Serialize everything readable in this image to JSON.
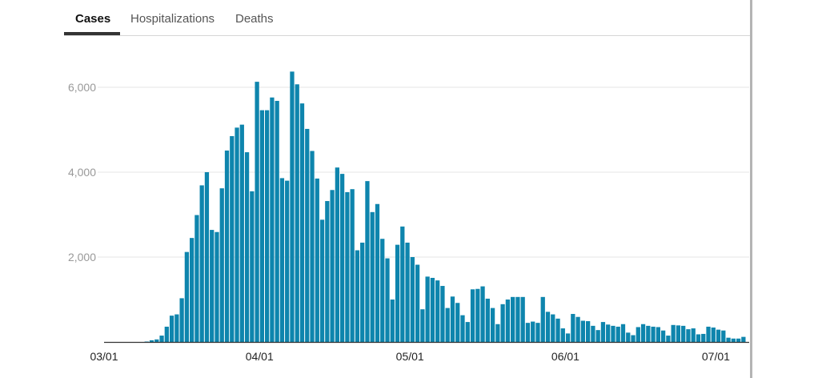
{
  "tabs": [
    {
      "label": "Cases",
      "active": true
    },
    {
      "label": "Hospitalizations",
      "active": false
    },
    {
      "label": "Deaths",
      "active": false
    }
  ],
  "colors": {
    "bar": "#0e85ad",
    "grid": "#e6e6e6",
    "axis": "#333333"
  },
  "chart_data": {
    "type": "bar",
    "title": "",
    "xlabel": "",
    "ylabel": "",
    "grid": true,
    "legend": "none",
    "ylim": [
      0,
      6500
    ],
    "yticks": [
      {
        "value": 2000,
        "label": "2,000"
      },
      {
        "value": 4000,
        "label": "4,000"
      },
      {
        "value": 6000,
        "label": "6,000"
      }
    ],
    "xticks": [
      {
        "index": 0,
        "label": "03/01"
      },
      {
        "index": 31,
        "label": "04/01"
      },
      {
        "index": 61,
        "label": "05/01"
      },
      {
        "index": 92,
        "label": "06/01"
      },
      {
        "index": 122,
        "label": "07/01"
      }
    ],
    "start_date": "03/01",
    "values": [
      0,
      0,
      0,
      0,
      0,
      0,
      0,
      0,
      10,
      40,
      60,
      150,
      360,
      620,
      650,
      1030,
      2120,
      2450,
      2990,
      3690,
      4000,
      2640,
      2590,
      3620,
      4510,
      4850,
      5050,
      5120,
      4470,
      3550,
      6130,
      5460,
      5460,
      5760,
      5680,
      3860,
      3800,
      6370,
      6070,
      5620,
      5020,
      4500,
      3850,
      2880,
      3320,
      3580,
      4110,
      3960,
      3530,
      3600,
      2160,
      2340,
      3790,
      3060,
      3250,
      2430,
      1970,
      1000,
      2290,
      2720,
      2340,
      2000,
      1820,
      770,
      1540,
      1510,
      1450,
      1320,
      800,
      1070,
      920,
      630,
      470,
      1240,
      1250,
      1310,
      1020,
      800,
      420,
      890,
      1000,
      1060,
      1060,
      1060,
      450,
      480,
      450,
      1060,
      710,
      650,
      550,
      320,
      200,
      660,
      590,
      500,
      490,
      380,
      280,
      470,
      410,
      380,
      360,
      420,
      220,
      160,
      350,
      420,
      380,
      360,
      350,
      270,
      150,
      400,
      390,
      380,
      300,
      320,
      180,
      190,
      360,
      340,
      290,
      270,
      100,
      80,
      80,
      120
    ]
  }
}
